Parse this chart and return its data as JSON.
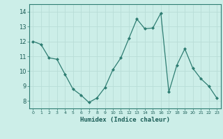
{
  "x": [
    0,
    1,
    2,
    3,
    4,
    5,
    6,
    7,
    8,
    9,
    10,
    11,
    12,
    13,
    14,
    15,
    16,
    17,
    18,
    19,
    20,
    21,
    22,
    23
  ],
  "y": [
    12.0,
    11.8,
    10.9,
    10.8,
    9.8,
    8.8,
    8.4,
    7.9,
    8.2,
    8.9,
    10.1,
    10.9,
    12.2,
    13.5,
    12.85,
    12.9,
    13.9,
    8.6,
    10.4,
    11.5,
    10.2,
    9.5,
    9.0,
    8.2
  ],
  "line_color": "#2e7d72",
  "marker": "D",
  "marker_size": 2,
  "bg_color": "#cceee8",
  "grid_color": "#b8ddd7",
  "xlabel": "Humidex (Indice chaleur)",
  "ylim": [
    7.5,
    14.5
  ],
  "xlim": [
    -0.5,
    23.5
  ],
  "yticks": [
    8,
    9,
    10,
    11,
    12,
    13,
    14
  ],
  "xticks": [
    0,
    1,
    2,
    3,
    4,
    5,
    6,
    7,
    8,
    9,
    10,
    11,
    12,
    13,
    14,
    15,
    16,
    17,
    18,
    19,
    20,
    21,
    22,
    23
  ]
}
